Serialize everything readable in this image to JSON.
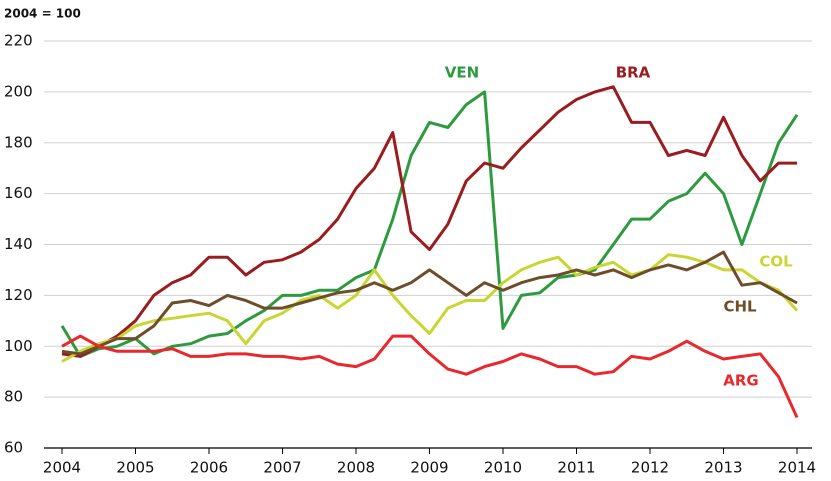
{
  "chart_data": {
    "type": "line",
    "title": "2004 = 100",
    "x": [
      2004,
      2004.25,
      2004.5,
      2004.75,
      2005,
      2005.25,
      2005.5,
      2005.75,
      2006,
      2006.25,
      2006.5,
      2006.75,
      2007,
      2007.25,
      2007.5,
      2007.75,
      2008,
      2008.25,
      2008.5,
      2008.75,
      2009,
      2009.25,
      2009.5,
      2009.75,
      2010,
      2010.25,
      2010.5,
      2010.75,
      2011,
      2011.25,
      2011.5,
      2011.75,
      2012,
      2012.25,
      2012.5,
      2012.75,
      2013,
      2013.25,
      2013.5,
      2013.75,
      2014
    ],
    "series": [
      {
        "name": "VEN",
        "color": "#2e9a3f",
        "values": [
          108,
          96,
          99,
          100,
          103,
          97,
          100,
          101,
          104,
          105,
          110,
          114,
          120,
          120,
          122,
          122,
          127,
          130,
          150,
          175,
          188,
          186,
          195,
          200,
          107,
          120,
          121,
          127,
          128,
          130,
          140,
          150,
          150,
          157,
          160,
          168,
          160,
          140,
          160,
          180,
          191
        ]
      },
      {
        "name": "BRA",
        "color": "#9b1c1f",
        "values": [
          97,
          96,
          100,
          104,
          110,
          120,
          125,
          128,
          135,
          135,
          128,
          133,
          134,
          137,
          142,
          150,
          162,
          170,
          184,
          145,
          138,
          148,
          165,
          172,
          170,
          178,
          185,
          192,
          197,
          200,
          202,
          188,
          188,
          175,
          177,
          175,
          190,
          175,
          165,
          172,
          172
        ]
      },
      {
        "name": "COL",
        "color": "#c8d631",
        "values": [
          94,
          98,
          101,
          103,
          108,
          110,
          111,
          112,
          113,
          110,
          101,
          110,
          113,
          118,
          120,
          115,
          120,
          130,
          120,
          112,
          105,
          115,
          118,
          118,
          125,
          130,
          133,
          135,
          128,
          131,
          133,
          128,
          130,
          136,
          135,
          133,
          130,
          130,
          125,
          122,
          114
        ]
      },
      {
        "name": "CHL",
        "color": "#6e4e2a",
        "values": [
          98,
          97,
          100,
          103,
          103,
          108,
          117,
          118,
          116,
          120,
          118,
          115,
          115,
          117,
          119,
          121,
          122,
          125,
          122,
          125,
          130,
          125,
          120,
          125,
          122,
          125,
          127,
          128,
          130,
          128,
          130,
          127,
          130,
          132,
          130,
          133,
          137,
          124,
          125,
          121,
          117
        ]
      },
      {
        "name": "ARG",
        "color": "#e8282d",
        "values": [
          100,
          104,
          100,
          98,
          98,
          98,
          99,
          96,
          96,
          97,
          97,
          96,
          96,
          95,
          96,
          93,
          92,
          95,
          104,
          104,
          97,
          91,
          89,
          92,
          94,
          97,
          95,
          92,
          92,
          89,
          90,
          96,
          95,
          98,
          102,
          98,
          95,
          96,
          97,
          88,
          72
        ]
      }
    ],
    "xlim": [
      2004,
      2014
    ],
    "xticks": [
      2004,
      2005,
      2006,
      2007,
      2008,
      2009,
      2010,
      2011,
      2012,
      2013,
      2014
    ],
    "ylim": [
      60,
      220
    ],
    "yticks": [
      60,
      80,
      100,
      120,
      140,
      160,
      180,
      200,
      220
    ],
    "grid": true
  }
}
